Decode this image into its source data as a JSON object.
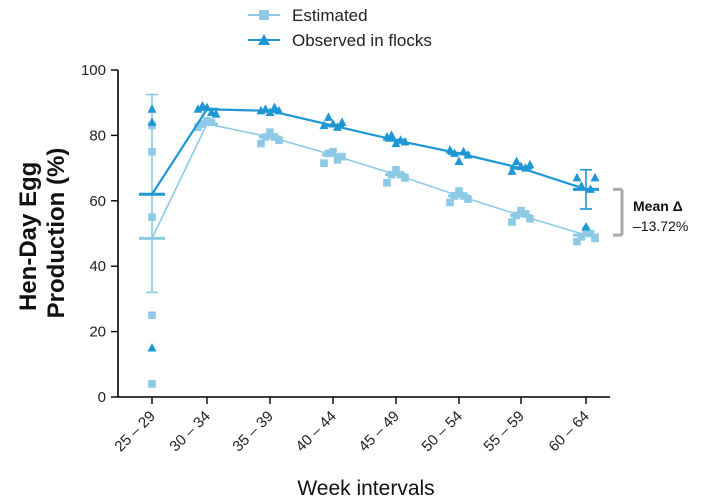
{
  "chart_data": {
    "type": "scatter",
    "xlabel": "Week intervals",
    "ylabel_line1": "Hen-Day Egg",
    "ylabel_line2": "Production (%)",
    "ylim": [
      0,
      100
    ],
    "yticks": [
      0,
      20,
      40,
      60,
      80,
      100
    ],
    "categories": [
      "25 – 29",
      "30 – 34",
      "35 – 39",
      "40 – 44",
      "45 – 49",
      "50 – 54",
      "55 – 59",
      "60 – 64"
    ],
    "grid": false,
    "legend_position": "top-center",
    "series": [
      {
        "name": "Estimated",
        "marker": "square",
        "color": "#8ecae6",
        "means": [
          48.5,
          83.5,
          79.5,
          74.0,
          68.0,
          61.5,
          55.5,
          49.5
        ],
        "error_bar": {
          "category": "25 – 29",
          "low": 32,
          "high": 92.5
        },
        "points": [
          [
            4,
            25,
            55,
            75,
            83
          ],
          [
            82.5,
            83.5,
            84.5,
            84
          ],
          [
            77.5,
            79.5,
            81,
            79.5,
            78.5
          ],
          [
            71.5,
            74.5,
            75,
            72.5,
            73.5
          ],
          [
            65.5,
            68,
            69.5,
            68,
            67
          ],
          [
            59.5,
            61.5,
            63,
            61.5,
            60.5
          ],
          [
            53.5,
            55.5,
            57,
            56,
            54.5
          ],
          [
            47.5,
            49,
            51,
            50,
            48.5
          ]
        ]
      },
      {
        "name": "Observed in flocks",
        "marker": "triangle",
        "color": "#1f97d4",
        "means": [
          62.0,
          88.0,
          87.5,
          83.0,
          78.5,
          74.5,
          70.0,
          63.5
        ],
        "error_bar": {
          "category": "60 – 64",
          "low": 57.5,
          "high": 69.5
        },
        "points": [
          [
            15,
            84,
            88
          ],
          [
            88,
            89,
            88.5,
            87,
            86.5
          ],
          [
            87.5,
            88,
            87,
            88.5,
            87.5
          ],
          [
            83,
            85.5,
            83.5,
            82.5,
            84
          ],
          [
            79.5,
            80,
            77.5,
            78.5,
            78
          ],
          [
            75.5,
            74.5,
            72,
            75,
            74
          ],
          [
            69,
            72,
            70.5,
            70,
            71
          ],
          [
            67,
            64.5,
            52,
            63.5,
            67
          ]
        ]
      }
    ],
    "annotation": {
      "title": "Mean Δ",
      "value": "–13.72%",
      "bracket_color": "#aaaaaa"
    }
  }
}
